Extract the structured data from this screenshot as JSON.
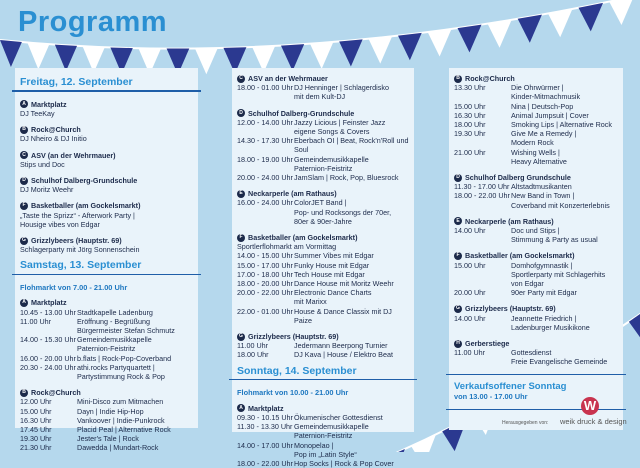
{
  "title": "Programm",
  "colors": {
    "accent": "#2a8fd2",
    "navy": "#2b3990",
    "background": "#b5d8ed",
    "panel": "#e9f3fa"
  },
  "columns": [
    [
      {
        "type": "day",
        "text": "Freitag, 12. September"
      },
      {
        "type": "venue",
        "badge": "A",
        "name": "Marktplatz",
        "plain": [
          "DJ TeeKay"
        ]
      },
      {
        "type": "venue",
        "badge": "B",
        "name": "Rock@Church",
        "plain": [
          "DJ Nheiro & DJ Initio"
        ]
      },
      {
        "type": "venue",
        "badge": "C",
        "name": "ASV (an der Wehrmauer)",
        "plain": [
          "Stips und Doc"
        ]
      },
      {
        "type": "venue",
        "badge": "D",
        "name": "Schulhof Dalberg-Grundschule",
        "plain": [
          "DJ Moritz Weehr"
        ]
      },
      {
        "type": "venue",
        "badge": "F",
        "name": "Basketballer (am Gockelsmarkt)",
        "plain": [
          "„Taste the Sprizz“ - Afterwork Party |",
          "Housige vibes von Edgar"
        ]
      },
      {
        "type": "venue",
        "badge": "G",
        "name": "Grizzlybeers (Hauptstr. 69)",
        "plain": [
          "Schlagerparty mit Jörg Sonnenschein"
        ]
      },
      {
        "type": "day",
        "text": "Samstag, 13. September"
      },
      {
        "type": "floh",
        "text": "Flohmarkt von 7.00 - 21.00 Uhr"
      },
      {
        "type": "venue",
        "badge": "A",
        "name": "Marktplatz",
        "rows": [
          [
            "10.45 - 13.00 Uhr",
            [
              "Stadtkapelle Ladenburg"
            ]
          ],
          [
            "11.00 Uhr",
            [
              "Eröffnung - Begrüßung",
              "Bürgermeister Stefan Schmutz"
            ]
          ],
          [
            "14.00 - 15.30 Uhr",
            [
              "Gemeindemusikkapelle",
              "Paternion-Feistritz"
            ]
          ],
          [
            "16.00 - 20.00 Uhr",
            [
              "b.flats | Rock-Pop-Coverband"
            ]
          ],
          [
            "20.30 - 24.00 Uhr",
            [
              "athi.rocks Partyquartett |",
              "Partystimmung Rock & Pop"
            ]
          ]
        ]
      },
      {
        "type": "venue",
        "badge": "B",
        "name": "Rock@Church",
        "rows": [
          [
            "12.00 Uhr",
            [
              "Mini-Disco zum Mitmachen"
            ]
          ],
          [
            "15.00 Uhr",
            [
              "Dayn | Indie Hip-Hop"
            ]
          ],
          [
            "16.30 Uhr",
            [
              "Vankoover | Indie-Punkrock"
            ]
          ],
          [
            "17.45 Uhr",
            [
              "Placid Peal | Alternative Rock"
            ]
          ],
          [
            "19.30 Uhr",
            [
              "Jester's Tale | Rock"
            ]
          ],
          [
            "21.30 Uhr",
            [
              "Dawedda | Mundart-Rock"
            ]
          ]
        ]
      }
    ],
    [
      {
        "type": "venue",
        "badge": "C",
        "name": "ASV an der Wehrmauer",
        "rows": [
          [
            "18.00 - 01.00 Uhr",
            [
              "DJ Henninger | Schlagerdisko",
              "mit dem Kult-DJ"
            ]
          ]
        ]
      },
      {
        "type": "venue",
        "badge": "D",
        "name": "Schulhof Dalberg-Grundschule",
        "rows": [
          [
            "12.00 - 14.00 Uhr",
            [
              "Jazzy Licious | Feinster Jazz",
              "eigene Songs & Covers"
            ]
          ],
          [
            "14.30 - 17.30 Uhr",
            [
              "Eberbach OI | Beat, Rock'n'Roll und",
              "Soul"
            ]
          ],
          [
            "18.00 - 19.00 Uhr",
            [
              "Gemeindemusikkapelle",
              "Paternion-Feistritz"
            ]
          ],
          [
            "20.00 - 24.00 Uhr",
            [
              "JamSlam | Rock, Pop, Bluesrock"
            ]
          ]
        ]
      },
      {
        "type": "venue",
        "badge": "E",
        "name": "Neckarperle (am Rathaus)",
        "rows": [
          [
            "16.00 - 24.00 Uhr",
            [
              "ColorJET Band |",
              "Pop- und Rocksongs der 70er,",
              "80er & 90er-Jahre"
            ]
          ]
        ]
      },
      {
        "type": "venue",
        "badge": "F",
        "name": "Basketballer (am Gockelsmarkt)",
        "plain": [
          "Sportlerflohmarkt am Vormittag"
        ],
        "rows": [
          [
            "14.00 - 15.00 Uhr",
            [
              "Summer Vibes mit Edgar"
            ]
          ],
          [
            "15.00 - 17.00 Uhr",
            [
              "Funky House mit Edgar"
            ]
          ],
          [
            "17.00 - 18.00 Uhr",
            [
              "Tech House mit Edgar"
            ]
          ],
          [
            "18.00 - 20.00 Uhr",
            [
              "Dance House mit Moritz Weehr"
            ]
          ],
          [
            "20.00 - 22.00 Uhr",
            [
              "Electronic Dance Charts",
              "mit Marixx"
            ]
          ],
          [
            "22.00 - 01.00 Uhr",
            [
              "House & Dance Classix mit DJ Paize"
            ]
          ]
        ]
      },
      {
        "type": "venue",
        "badge": "G",
        "name": "Grizzlybeers (Hauptstr. 69)",
        "rows": [
          [
            "11.00 Uhr",
            [
              "Jedermann Beerpong Turnier"
            ]
          ],
          [
            "18.00 Uhr",
            [
              "DJ Kava | House / Elektro Beat"
            ]
          ]
        ]
      },
      {
        "type": "day",
        "text": "Sonntag, 14. September"
      },
      {
        "type": "floh",
        "text": "Flohmarkt von 10.00 - 21.00 Uhr"
      },
      {
        "type": "venue",
        "badge": "A",
        "name": "Marktplatz",
        "rows": [
          [
            "09.30 - 10.15 Uhr",
            [
              "Ökumenischer Gottesdienst"
            ]
          ],
          [
            "11.30 - 13.30 Uhr",
            [
              "Gemeindemusikkapelle",
              "Paternion-Feistritz"
            ]
          ],
          [
            "14.00 - 17.00 Uhr",
            [
              "Monopelao |",
              "Pop im „Latin Style“"
            ]
          ],
          [
            "18.00 - 22.00 Uhr",
            [
              "Hop Socks | Rock & Pop Cover"
            ]
          ]
        ]
      }
    ],
    [
      {
        "type": "venue",
        "badge": "B",
        "name": "Rock@Church",
        "rows": [
          [
            "13.30 Uhr",
            [
              "Die Ohrwürmer |",
              "Kinder-Mitmachmusik"
            ]
          ],
          [
            "15.00 Uhr",
            [
              "Nina | Deutsch-Pop"
            ]
          ],
          [
            "16.30 Uhr",
            [
              "Animal Jumpsuit | Cover"
            ]
          ],
          [
            "18.00 Uhr",
            [
              "Smoking Lips | Alternative Rock"
            ]
          ],
          [
            "19.30 Uhr",
            [
              "Give Me a Remedy |",
              "Modern Rock"
            ]
          ],
          [
            "21.00 Uhr",
            [
              "Wishing Wells |",
              "Heavy Alternative"
            ]
          ]
        ]
      },
      {
        "type": "venue",
        "badge": "D",
        "name": "Schulhof Dalberg Grundschule",
        "rows": [
          [
            "11.30 - 17.00 Uhr",
            [
              "Altstadtmusikanten"
            ]
          ],
          [
            "18.00 - 22.00 Uhr",
            [
              "New Band in Town |",
              "Coverband mit Konzerterlebnis"
            ]
          ]
        ]
      },
      {
        "type": "venue",
        "badge": "E",
        "name": "Neckarperle (am Rathaus)",
        "rows": [
          [
            "14.00 Uhr",
            [
              "Doc und Stips |",
              "Stimmung & Party as usual"
            ]
          ]
        ]
      },
      {
        "type": "venue",
        "badge": "F",
        "name": "Basketballer (am Gockelsmarkt)",
        "rows": [
          [
            "15.00 Uhr",
            [
              "Domhofgymnastik |",
              "Sportlerparty mit Schlagerhits",
              "von Edgar"
            ]
          ],
          [
            "20.00 Uhr",
            [
              "90er Party mit Edgar"
            ]
          ]
        ]
      },
      {
        "type": "venue",
        "badge": "G",
        "name": "Grizzlybeers (Hauptstr. 69)",
        "rows": [
          [
            "14.00 Uhr",
            [
              "Jeannette Friedrich |",
              "Ladenburger Musikikone"
            ]
          ]
        ]
      },
      {
        "type": "venue",
        "badge": "H",
        "name": "Gerberstiege",
        "rows": [
          [
            "11.00 Uhr",
            [
              "Gottesdienst",
              "Freie Evangelische Gemeinde"
            ]
          ]
        ]
      },
      {
        "type": "vk",
        "line1": "Verkaufsoffener Sonntag",
        "line2": "von 13.00 - 17.00 Uhr"
      }
    ]
  ],
  "publisher": {
    "label": "Herausgegeben von:",
    "name": "weik druck & design",
    "logo_letter": "W"
  }
}
